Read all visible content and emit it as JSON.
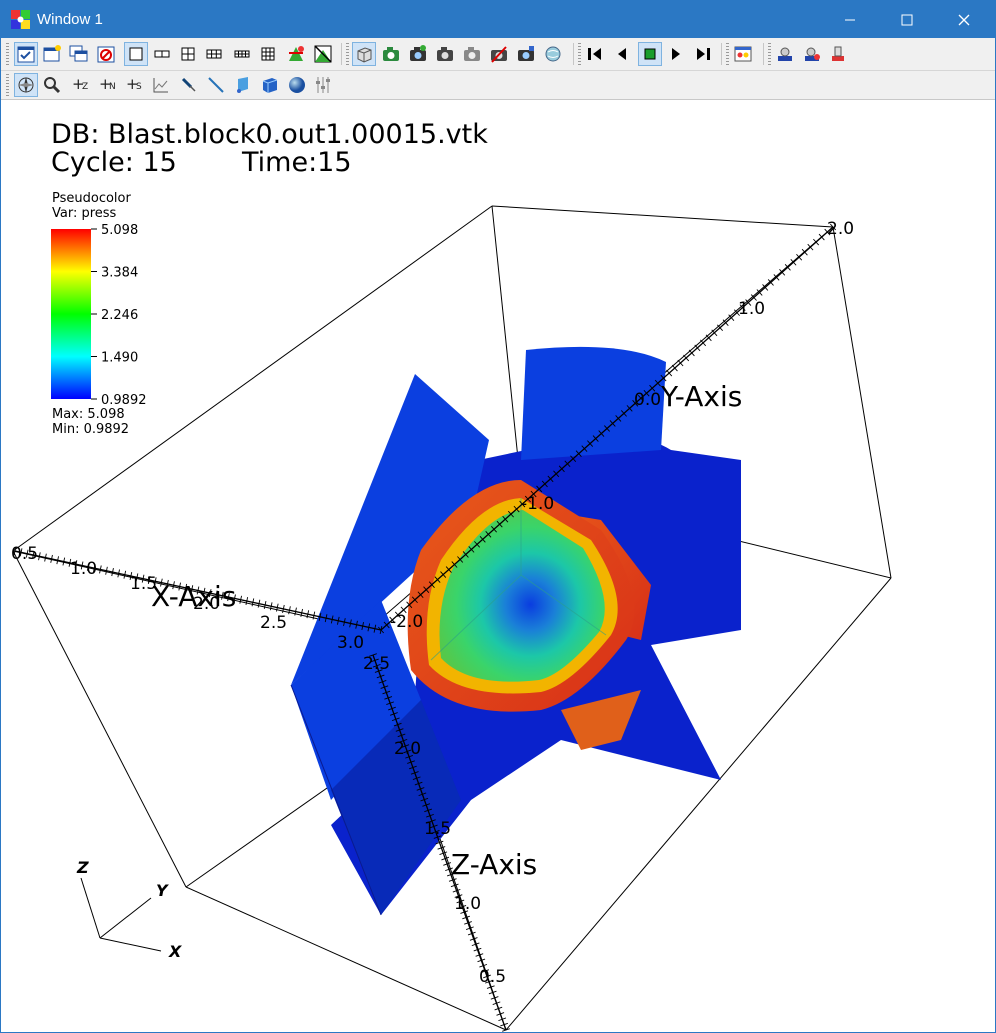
{
  "window": {
    "title": "Window 1"
  },
  "toolbar1": {
    "buttons": [
      "active-window-toggle",
      "new-window",
      "clone-window",
      "delete-window",
      "layout-1x1",
      "layout-1x2",
      "layout-2x2",
      "layout-1x3",
      "layout-3x3",
      "lock-view",
      "lock-time",
      "navigate-mode",
      "add-plot",
      "draw-plots",
      "hide-plots",
      "save-image",
      "delete-plots",
      "clear-plots",
      "reset-view",
      "time-first",
      "time-back",
      "time-stop",
      "time-play",
      "time-last",
      "settings",
      "save-session",
      "restore-session",
      "print"
    ]
  },
  "toolbar2": {
    "buttons": [
      "navigate-tool",
      "zoom-tool",
      "zone-pick-tool",
      "node-pick-tool",
      "spreadsheet-pick-tool",
      "curve-tool",
      "pick-line-tool",
      "line-tool",
      "plane-tool",
      "box-tool",
      "sphere-tool",
      "axis-restriction-tool"
    ],
    "labels": {
      "zpick": "Z",
      "npick": "N",
      "spick": "S"
    }
  },
  "plot": {
    "db_label": "DB: Blast.block0.out1.00015.vtk",
    "cycle_label": "Cycle: 15",
    "time_label": "Time:15",
    "legend": {
      "title": "Pseudocolor",
      "var": "Var: press",
      "ticks": [
        "5.098",
        "3.384",
        "2.246",
        "1.490",
        "0.9892"
      ],
      "max": "Max:  5.098",
      "min": "Min:  0.9892",
      "colors": [
        "#ff0000",
        "#ffff00",
        "#00ff00",
        "#00ffff",
        "#0000ff"
      ]
    },
    "axes": {
      "x_title": "X-Axis",
      "y_title": "Y-Axis",
      "z_title": "Z-Axis",
      "x_ticks": [
        "0.5",
        "1.0",
        "1.5",
        "2.0",
        "2.5",
        "3.0"
      ],
      "y_ticks": [
        "-2.0",
        "-1.0",
        "0.0",
        "1.0",
        "2.0"
      ],
      "z_ticks": [
        "2.5",
        "2.0",
        "1.5",
        "1.0",
        "0.5"
      ]
    },
    "triad": {
      "x": "X",
      "y": "Y",
      "z": "Z"
    }
  }
}
